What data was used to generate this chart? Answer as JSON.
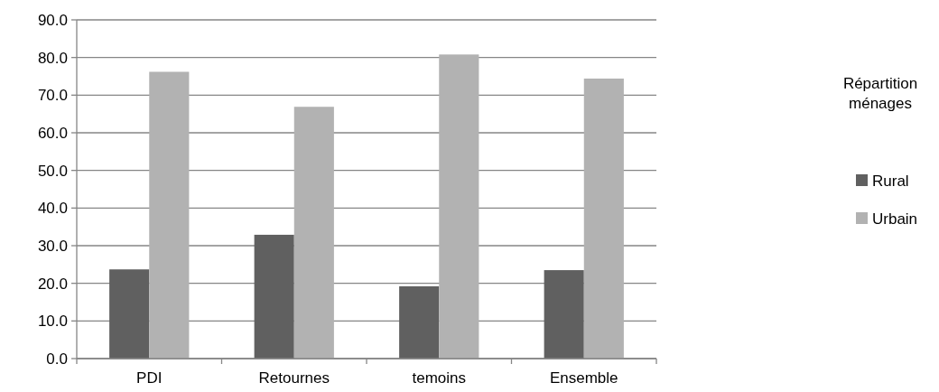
{
  "chart_data": {
    "type": "bar",
    "title": "Répartition ménages",
    "categories": [
      "PDI",
      "Retournes",
      "temoins",
      "Ensemble"
    ],
    "series": [
      {
        "name": "Rural",
        "color": "#606060",
        "values": [
          23.7,
          32.9,
          19.2,
          23.5
        ]
      },
      {
        "name": "Urbain",
        "color": "#b2b2b2",
        "values": [
          76.2,
          66.9,
          80.8,
          74.4
        ]
      }
    ],
    "ylim": [
      0,
      90
    ],
    "yticks": [
      {
        "value": 0,
        "label": "0.0"
      },
      {
        "value": 10,
        "label": "10.0"
      },
      {
        "value": 20,
        "label": "20.0"
      },
      {
        "value": 30,
        "label": "30.0"
      },
      {
        "value": 40,
        "label": "40.0"
      },
      {
        "value": 50,
        "label": "50.0"
      },
      {
        "value": 60,
        "label": "60.0"
      },
      {
        "value": 70,
        "label": "70.0"
      },
      {
        "value": 80,
        "label": "80.0"
      },
      {
        "value": 90,
        "label": "90.0"
      }
    ],
    "grid": "y",
    "legend": "right"
  }
}
